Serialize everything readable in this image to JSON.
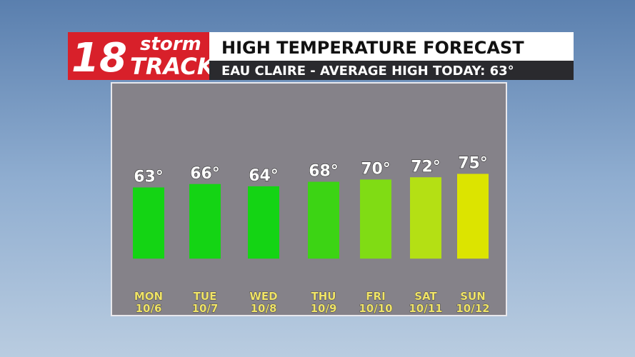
{
  "chart_data": {
    "type": "bar",
    "logo": {
      "number": "18",
      "word1": "storm",
      "word2": "TRACK"
    },
    "title": "HIGH TEMPERATURE FORECAST",
    "subtitle": "EAU CLAIRE - AVERAGE HIGH TODAY: 63°",
    "categories": [
      "MON",
      "TUE",
      "WED",
      "THU",
      "FRI",
      "SAT",
      "SUN"
    ],
    "category_dates": [
      "10/6",
      "10/7",
      "10/8",
      "10/9",
      "10/10",
      "10/11",
      "10/12"
    ],
    "values": [
      63,
      66,
      64,
      68,
      70,
      72,
      75
    ],
    "value_labels": [
      "63°",
      "66°",
      "64°",
      "68°",
      "70°",
      "72°",
      "75°"
    ],
    "colors": [
      "#14d414",
      "#14d414",
      "#14d414",
      "#3cd414",
      "#80dc14",
      "#b4e014",
      "#dce400"
    ],
    "ylim": [
      -27,
      153
    ]
  }
}
